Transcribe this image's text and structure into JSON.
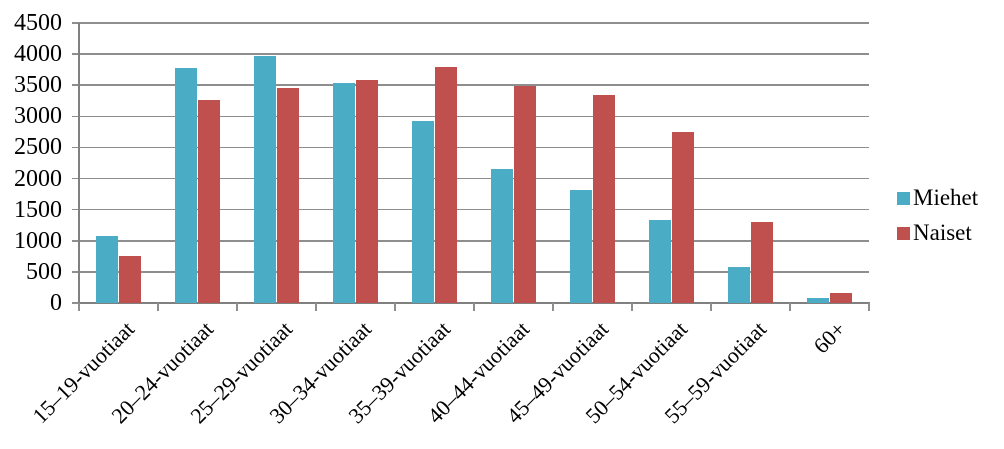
{
  "chart_data": {
    "type": "bar",
    "title": "",
    "xlabel": "",
    "ylabel": "",
    "categories": [
      "15–19-vuotiaat",
      "20–24-vuotiaat",
      "25–29-vuotiaat",
      "30–34-vuotiaat",
      "35–39-vuotiaat",
      "40–44-vuotiaat",
      "45–49-vuotiaat",
      "50–54-vuotiaat",
      "55–59-vuotiaat",
      "60+"
    ],
    "series": [
      {
        "name": "Miehet",
        "color": "#4BACC6",
        "values": [
          1075,
          3770,
          3975,
          3530,
          2920,
          2160,
          1820,
          1330,
          575,
          80
        ]
      },
      {
        "name": "Naiset",
        "color": "#C0504D",
        "values": [
          750,
          3270,
          3460,
          3590,
          3790,
          3480,
          3350,
          2745,
          1295,
          160
        ]
      }
    ],
    "ylim": [
      0,
      4500
    ],
    "ytick_step": 500,
    "ytick_labels": [
      "4500",
      "4000",
      "3500",
      "3000",
      "2500",
      "2000",
      "1500",
      "1000",
      "500",
      "0"
    ],
    "grid": "horizontal",
    "legend_position": "right",
    "bar_gap_ratio": 1.5,
    "background": "#FFFFFF",
    "grid_color": "#8E8E8E",
    "axis_color": "#808080",
    "text_color": "#000000"
  }
}
